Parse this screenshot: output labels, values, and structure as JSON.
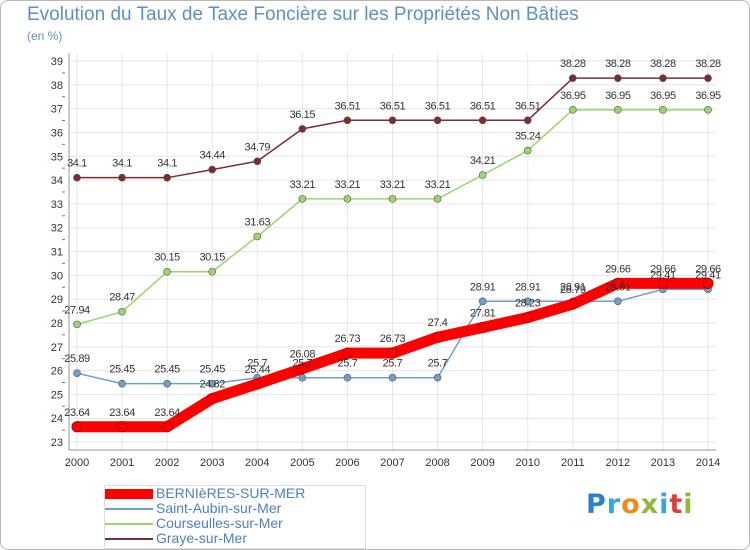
{
  "title": "Evolution du Taux de Taxe Foncière sur les Propriétés Non Bâties",
  "unit_label": "(en %)",
  "logo_text": "Proxiti",
  "colors": {
    "title": "#5f8fc4",
    "axis_text": "#333333",
    "grid": "#e6e6e6",
    "value_label": "#333333"
  },
  "chart_data": {
    "type": "line",
    "title": "Evolution du Taux de Taxe Foncière sur les Propriétés Non Bâties",
    "xlabel": "",
    "ylabel": "(en %)",
    "ylim": [
      23,
      39
    ],
    "grid": true,
    "legend_position": "bottom-left",
    "x": [
      "2000",
      "2001",
      "2002",
      "2003",
      "2004",
      "2005",
      "2006",
      "2007",
      "2008",
      "2009",
      "2010",
      "2011",
      "2012",
      "2013",
      "2014"
    ],
    "y_ticks": [
      "23",
      "24",
      "25",
      "26",
      "27",
      "28",
      "29",
      "30",
      "31",
      "32",
      "33",
      "34",
      "35",
      "36",
      "37",
      "38",
      "39"
    ],
    "series": [
      {
        "name": "BERNIèRES-SUR-MER",
        "color": "#ff0000",
        "values": [
          23.64,
          23.64,
          23.64,
          24.82,
          25.44,
          26.08,
          26.73,
          26.73,
          27.4,
          27.81,
          28.23,
          28.79,
          29.66,
          29.66,
          29.66
        ],
        "labels": [
          "23.64",
          "23.64",
          "23.64",
          "24.82",
          "25.44",
          "26.08",
          "26.73",
          "26.73",
          "27.4",
          "27.81",
          "28.23",
          "28.79",
          "29.66",
          "29.66",
          "29.66"
        ]
      },
      {
        "name": "Saint-Aubin-sur-Mer",
        "color": "#6e9fcb",
        "values": [
          25.89,
          25.45,
          25.45,
          25.45,
          25.7,
          25.7,
          25.7,
          25.7,
          25.7,
          28.91,
          28.91,
          28.91,
          28.91,
          29.41,
          29.41
        ],
        "labels": [
          "25.89",
          "25.45",
          "25.45",
          "25.45",
          "25.7",
          "25.7",
          "25.7",
          "25.7",
          "25.7",
          "28.91",
          "28.91",
          "28.91",
          "28.91",
          "29.41",
          "29.41"
        ]
      },
      {
        "name": "Courseulles-sur-Mer",
        "color": "#9ad66a",
        "values": [
          27.94,
          28.47,
          30.15,
          30.15,
          31.63,
          33.21,
          33.21,
          33.21,
          33.21,
          34.21,
          35.24,
          36.95,
          36.95,
          36.95,
          36.95
        ],
        "labels": [
          "27.94",
          "28.47",
          "30.15",
          "30.15",
          "31.63",
          "33.21",
          "33.21",
          "33.21",
          "33.21",
          "34.21",
          "35.24",
          "36.95",
          "36.95",
          "36.95",
          "36.95"
        ]
      },
      {
        "name": "Graye-sur-Mer",
        "color": "#7a2e34",
        "values": [
          34.1,
          34.1,
          34.1,
          34.44,
          34.79,
          36.15,
          36.51,
          36.51,
          36.51,
          36.51,
          36.51,
          38.28,
          38.28,
          38.28,
          38.28
        ],
        "labels": [
          "34.1",
          "34.1",
          "34.1",
          "34.44",
          "34.79",
          "36.15",
          "36.51",
          "36.51",
          "36.51",
          "36.51",
          "36.51",
          "38.28",
          "38.28",
          "38.28",
          "38.28"
        ]
      }
    ]
  }
}
